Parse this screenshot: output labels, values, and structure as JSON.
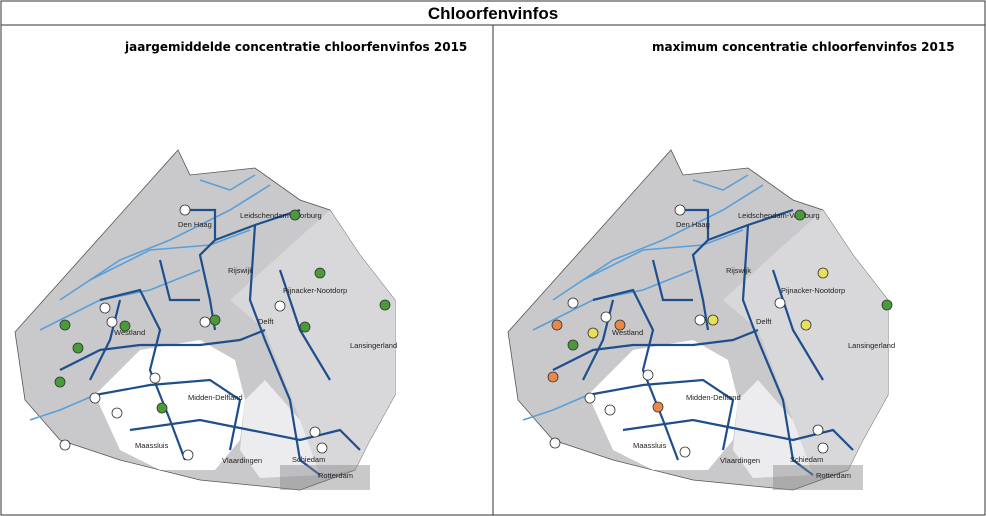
{
  "header": {
    "title": "Chloorfenvinfos"
  },
  "panels": [
    {
      "title": "jaargemiddelde concentratie chloorfenvinfos 2015"
    },
    {
      "title": "maximum concentratie chloorfenvinfos 2015"
    }
  ],
  "places": [
    "Den Haag",
    "Leidschendam-Voorburg",
    "Rijswijk",
    "Pijnacker-Nootdorp",
    "Delft",
    "Westland",
    "Lansingerland",
    "Midden-Delfland",
    "Maassluis",
    "Vlaardingen",
    "Schiedam",
    "Rotterdam"
  ]
}
